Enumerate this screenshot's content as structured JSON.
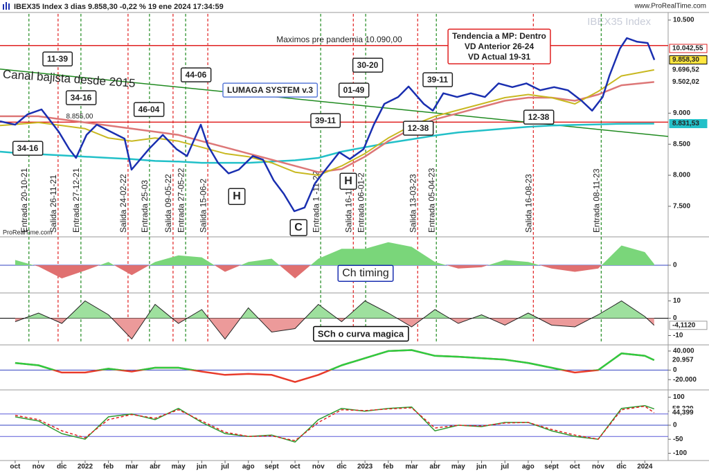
{
  "chart_data": [
    {
      "type": "line",
      "title": "IBEX35 Index 3 dias 9.858,30 -0,22 % 19 ene 2024 17:34:59",
      "watermark": "IBEX35 Index",
      "source": "www.ProRealTime.com",
      "credit": "ProRealTime.com",
      "xlim": [
        -0.65,
        28
      ],
      "xticks": [
        {
          "value": 0,
          "label": "oct"
        },
        {
          "value": 1,
          "label": "nov"
        },
        {
          "value": 2,
          "label": "dic"
        },
        {
          "value": 3,
          "label": "2022"
        },
        {
          "value": 4,
          "label": "feb"
        },
        {
          "value": 5,
          "label": "mar"
        },
        {
          "value": 6,
          "label": "abr"
        },
        {
          "value": 7,
          "label": "may"
        },
        {
          "value": 8,
          "label": "jun"
        },
        {
          "value": 9,
          "label": "jul"
        },
        {
          "value": 10,
          "label": "ago"
        },
        {
          "value": 11,
          "label": "sept"
        },
        {
          "value": 12,
          "label": "oct"
        },
        {
          "value": 13,
          "label": "nov"
        },
        {
          "value": 14,
          "label": "dic"
        },
        {
          "value": 15,
          "label": "2023"
        },
        {
          "value": 16,
          "label": "feb"
        },
        {
          "value": 17,
          "label": "mar"
        },
        {
          "value": 18,
          "label": "abr"
        },
        {
          "value": 19,
          "label": "may"
        },
        {
          "value": 20,
          "label": "jun"
        },
        {
          "value": 21,
          "label": "jul"
        },
        {
          "value": 22,
          "label": "ago"
        },
        {
          "value": 23,
          "label": "sept"
        },
        {
          "value": 24,
          "label": "oct"
        },
        {
          "value": 25,
          "label": "nov"
        },
        {
          "value": 26,
          "label": "dic"
        },
        {
          "value": 27,
          "label": "2024"
        }
      ],
      "ylim": [
        7030,
        10600
      ],
      "yticks": [
        {
          "value": 10500,
          "label": "10.500"
        },
        {
          "value": 9000,
          "label": "9.000"
        },
        {
          "value": 8500,
          "label": "8.500"
        },
        {
          "value": 8000,
          "label": "8.000"
        },
        {
          "value": 7500,
          "label": "7.500"
        }
      ],
      "series": [
        {
          "name": "Canal bajista desde 2015",
          "color": "#1f8a1f",
          "width": 1.5,
          "x": [
            -0.65,
            28
          ],
          "values": [
            9710,
            8625
          ]
        },
        {
          "name": "MM cyan",
          "color": "#22c0c8",
          "width": 2.5,
          "x": [
            -0.65,
            0,
            1,
            2,
            3,
            4,
            5,
            6,
            7,
            8,
            9,
            10,
            11,
            12,
            13,
            14,
            15,
            16,
            17,
            18,
            19,
            20,
            21,
            22,
            23,
            24,
            25,
            26,
            27.4
          ],
          "values": [
            8380,
            8360,
            8340,
            8320,
            8300,
            8280,
            8260,
            8230,
            8220,
            8200,
            8200,
            8200,
            8220,
            8240,
            8280,
            8380,
            8450,
            8520,
            8580,
            8640,
            8690,
            8720,
            8750,
            8780,
            8800,
            8810,
            8820,
            8830,
            8832
          ]
        },
        {
          "name": "MM roja",
          "color": "#d77",
          "width": 2.5,
          "x": [
            -0.65,
            0,
            1,
            2,
            3,
            4,
            5,
            6,
            7,
            8,
            9,
            10,
            11,
            12,
            13,
            14,
            15,
            16,
            17,
            18,
            19,
            20,
            21,
            22,
            23,
            24,
            25,
            26,
            27.4
          ],
          "values": [
            8950,
            8950,
            8950,
            8900,
            8850,
            8800,
            8750,
            8700,
            8650,
            8550,
            8450,
            8350,
            8250,
            8150,
            8050,
            8100,
            8300,
            8550,
            8750,
            8900,
            9000,
            9100,
            9200,
            9250,
            9250,
            9200,
            9300,
            9450,
            9502
          ]
        },
        {
          "name": "MM amarilla",
          "color": "#c8b820",
          "width": 2,
          "x": [
            -0.65,
            0,
            1,
            2,
            3,
            4,
            5,
            6,
            7,
            8,
            9,
            10,
            11,
            12,
            13,
            14,
            15,
            16,
            17,
            18,
            19,
            20,
            21,
            22,
            23,
            24,
            25,
            26,
            27.4
          ],
          "values": [
            8800,
            8820,
            8850,
            8800,
            8750,
            8600,
            8550,
            8600,
            8550,
            8450,
            8350,
            8300,
            8200,
            8050,
            8000,
            8150,
            8350,
            8600,
            8800,
            8950,
            9050,
            9150,
            9250,
            9300,
            9250,
            9150,
            9350,
            9600,
            9697
          ]
        },
        {
          "name": "IBEX35",
          "color": "#1a2fb0",
          "width": 2.5,
          "x": [
            -0.65,
            0,
            0.53,
            1.13,
            1.87,
            2.32,
            2.61,
            3.06,
            3.5,
            4.1,
            4.69,
            4.99,
            5.73,
            6.33,
            6.92,
            7.37,
            7.96,
            8.26,
            8.7,
            9.15,
            9.59,
            10.19,
            10.63,
            11.08,
            11.52,
            11.97,
            12.41,
            12.86,
            13.31,
            13.9,
            14.35,
            14.94,
            15.38,
            15.83,
            16.42,
            16.87,
            17.52,
            17.91,
            18.36,
            18.95,
            19.54,
            20.14,
            20.73,
            21.32,
            21.92,
            22.51,
            23.11,
            23.7,
            24.29,
            24.74,
            25.19,
            25.48,
            25.93,
            26.23,
            26.67,
            27.12,
            27.41
          ],
          "values": [
            8870,
            8815,
            8980,
            9060,
            8700,
            8420,
            8280,
            8650,
            8815,
            8700,
            8590,
            8090,
            8420,
            8650,
            8420,
            8310,
            8815,
            8480,
            8200,
            8030,
            8090,
            8310,
            8250,
            7920,
            7700,
            7420,
            7480,
            7870,
            8090,
            8370,
            8260,
            8420,
            8815,
            9150,
            9260,
            9430,
            9150,
            9040,
            9320,
            9260,
            9320,
            9260,
            9480,
            9420,
            9480,
            9370,
            9420,
            9370,
            9200,
            9040,
            9260,
            9600,
            10040,
            10210,
            10150,
            10130,
            9858.3
          ]
        }
      ],
      "levels": [
        {
          "value": 10090,
          "label": "Maximos pre pandemia 10.090,00",
          "color": "#e02020"
        },
        {
          "value": 8855,
          "label": "8.855,00",
          "color": "#e02020"
        }
      ],
      "last_labels": [
        {
          "value": 10042.55,
          "label": "10.042,55",
          "bg": "#ffffff",
          "fg": "#333",
          "border": "#e02020"
        },
        {
          "value": 9858.3,
          "label": "9.858,30",
          "bg": "#ffe640",
          "fg": "#000",
          "border": "#000"
        },
        {
          "value": 9696.52,
          "label": "9.696,52",
          "bg": "#ffffff",
          "fg": "#c8b820",
          "border": "#ffffff"
        },
        {
          "value": 9502.02,
          "label": "9.502,02",
          "bg": "#ffffff",
          "fg": "#d05050",
          "border": "#ffffff"
        },
        {
          "value": 8831.53,
          "label": "8.831,53",
          "bg": "#22c0c8",
          "fg": "#000",
          "border": "#22c0c8"
        }
      ],
      "signals": [
        {
          "label": "Entrada 20-10-21",
          "x": 0.59,
          "color": "#1f8a1f"
        },
        {
          "label": "Salida 26-11-21",
          "x": 1.84,
          "color": "#e02020"
        },
        {
          "label": "Entrada 27-12-21",
          "x": 2.82,
          "color": "#1f8a1f"
        },
        {
          "label": "Salida 24-02-22",
          "x": 4.84,
          "color": "#e02020"
        },
        {
          "label": "Entrada 25-03",
          "x": 5.76,
          "color": "#1f8a1f"
        },
        {
          "label": "Salida 09-05-22",
          "x": 6.77,
          "color": "#e02020"
        },
        {
          "label": "Entrada 27-05-22",
          "x": 7.31,
          "color": "#1f8a1f"
        },
        {
          "label": "Salida 15-06-2",
          "x": 8.26,
          "color": "#e02020"
        },
        {
          "label": "Entrada 1 -11-22",
          "x": 13.1,
          "color": "#1f8a1f"
        },
        {
          "label": "Salida 16-12-2",
          "x": 14.5,
          "color": "#e02020"
        },
        {
          "label": "Entrada 06-01-2",
          "x": 15.03,
          "color": "#1f8a1f"
        },
        {
          "label": "Salida 13-03-23",
          "x": 17.26,
          "color": "#e02020"
        },
        {
          "label": "Entrada 05-04-23",
          "x": 18.06,
          "color": "#1f8a1f"
        },
        {
          "label": "Salida 16-08-23",
          "x": 22.22,
          "color": "#e02020"
        },
        {
          "label": "Entrada 08-11-23",
          "x": 25.13,
          "color": "#1f8a1f"
        }
      ],
      "annotations": [
        {
          "lines": [
            "11-39"
          ],
          "color": "#e02020"
        },
        {
          "lines": [
            "34-16"
          ],
          "color": "#1f8a1f"
        },
        {
          "lines": [
            "34-16"
          ],
          "color": "#1f8a1f"
        },
        {
          "lines": [
            "46-04"
          ],
          "color": "#1f8a1f"
        },
        {
          "lines": [
            "44-06"
          ],
          "color": "#1f8a1f"
        },
        {
          "lines": [
            "LUMAGA SYSTEM v.3"
          ],
          "color": "#e02020"
        },
        {
          "lines": [
            "01-49"
          ],
          "color": "#e02020"
        },
        {
          "lines": [
            "30-20"
          ],
          "color": "#1f8a1f"
        },
        {
          "lines": [
            "39-11"
          ],
          "color": "#1f8a1f"
        },
        {
          "lines": [
            "39-11"
          ],
          "color": "#1f8a1f"
        },
        {
          "lines": [
            "12-38"
          ],
          "color": "#e02020"
        },
        {
          "lines": [
            "12-38"
          ],
          "color": "#e02020"
        },
        {
          "lines": [
            "H"
          ],
          "color": "#1a2fb0"
        },
        {
          "lines": [
            "H"
          ],
          "color": "#1a2fb0"
        },
        {
          "lines": [
            "C"
          ],
          "color": "#1a2fb0"
        },
        {
          "lines": [
            "Tendencia a MP: Dentro",
            "VD Anterior 26-24",
            "VD Actual 19-31"
          ],
          "color": "#1a2fb0"
        }
      ]
    },
    {
      "type": "area",
      "title": "Ch timing",
      "ylim": [
        -40,
        40
      ],
      "yticks": [
        0
      ],
      "x": [
        0,
        1,
        2,
        3,
        4,
        5,
        6,
        7,
        8,
        9,
        10,
        11,
        12,
        13,
        14,
        15,
        16,
        17,
        18,
        19,
        20,
        21,
        22,
        23,
        24,
        25,
        26,
        27,
        27.4
      ],
      "series": [
        {
          "name": "Ch timing",
          "color": "#7ad67a",
          "color_neg": "#e07070",
          "values": [
            8,
            -2,
            -20,
            -8,
            5,
            -15,
            5,
            15,
            12,
            -10,
            5,
            10,
            -20,
            10,
            25,
            25,
            35,
            28,
            5,
            -5,
            -3,
            8,
            5,
            -5,
            -10,
            -5,
            30,
            20,
            2
          ]
        }
      ]
    },
    {
      "type": "area",
      "title": "SCh o curva magica",
      "ylim": [
        -14.6,
        13.8
      ],
      "yticks": [
        10,
        0,
        -10
      ],
      "x": [
        0,
        1,
        2,
        3,
        4,
        5,
        6,
        7,
        8,
        9,
        10,
        11,
        12,
        13,
        14,
        15,
        16,
        17,
        18,
        19,
        20,
        21,
        22,
        23,
        24,
        25,
        26,
        27,
        27.4
      ],
      "series": [
        {
          "name": "SCh",
          "color": "#9ee09e",
          "color_neg": "#ec9a9a",
          "values": [
            -2,
            3,
            -3,
            10,
            2,
            -12,
            8,
            -3,
            5,
            -12,
            6,
            -8,
            -6,
            8,
            -2,
            10,
            3,
            -5,
            5,
            -3,
            2,
            -4,
            3,
            -4,
            -5,
            2,
            10,
            1,
            -4.112
          ]
        }
      ],
      "last_labels": [
        {
          "value": -4.112,
          "label": "-4,1120",
          "bg": "#ffffff",
          "fg": "#333",
          "border": "#999"
        }
      ]
    },
    {
      "type": "line",
      "ylim": [
        -38600,
        50000
      ],
      "yticks": [
        {
          "value": 40000,
          "label": "40.000"
        },
        0,
        {
          "value": -20000,
          "label": "-20.000"
        }
      ],
      "x": [
        0,
        1,
        2,
        3,
        4,
        5,
        6,
        7,
        8,
        9,
        10,
        11,
        12,
        13,
        14,
        15,
        16,
        17,
        18,
        19,
        20,
        21,
        22,
        23,
        24,
        25,
        26,
        27,
        27.4
      ],
      "series": [
        {
          "name": "Momentum",
          "color": "#e83a2a",
          "color_pos": "#2ecc40",
          "values": [
            15000,
            10000,
            -5000,
            -5000,
            3000,
            -3000,
            5000,
            5000,
            -3000,
            -10000,
            -8000,
            -10000,
            -25000,
            -10000,
            10000,
            25000,
            40000,
            42000,
            30000,
            28000,
            25000,
            22000,
            15000,
            5000,
            -5000,
            0,
            35000,
            30000,
            20957
          ]
        }
      ],
      "last_labels": [
        {
          "value": 20957,
          "label": "20.957",
          "bg": "#ffffff",
          "fg": "#e02020",
          "border": "#ffffff"
        }
      ]
    },
    {
      "type": "line",
      "ylim": [
        -121,
        121
      ],
      "yticks": [
        100,
        50,
        0,
        -50,
        -100
      ],
      "levels": [
        40,
        -40
      ],
      "x": [
        0,
        1,
        2,
        3,
        4,
        5,
        6,
        7,
        8,
        9,
        10,
        11,
        12,
        13,
        14,
        15,
        16,
        17,
        18,
        19,
        20,
        21,
        22,
        23,
        24,
        25,
        26,
        27,
        27.4
      ],
      "series": [
        {
          "name": "K",
          "color": "#2e9a2e",
          "values": [
            30,
            15,
            -30,
            -50,
            30,
            40,
            20,
            60,
            10,
            -30,
            -40,
            -35,
            -60,
            20,
            60,
            50,
            60,
            65,
            -20,
            0,
            -5,
            10,
            10,
            -20,
            -40,
            -50,
            60,
            70,
            58.329
          ]
        },
        {
          "name": "D",
          "color": "#e02020",
          "dash": "4 3",
          "values": [
            35,
            20,
            -20,
            -45,
            20,
            38,
            25,
            55,
            15,
            -25,
            -40,
            -38,
            -55,
            10,
            55,
            52,
            58,
            62,
            -10,
            0,
            -3,
            8,
            10,
            -15,
            -35,
            -50,
            55,
            68,
            44.399
          ]
        }
      ],
      "last_labels": [
        {
          "value": 58.329,
          "label": "58,329",
          "bg": "#ffffff",
          "fg": "#e02020",
          "border": "#ffffff"
        },
        {
          "value": 44.399,
          "label": "44,399",
          "bg": "#ffffff",
          "fg": "#3040c0",
          "border": "#ffffff"
        }
      ]
    }
  ]
}
